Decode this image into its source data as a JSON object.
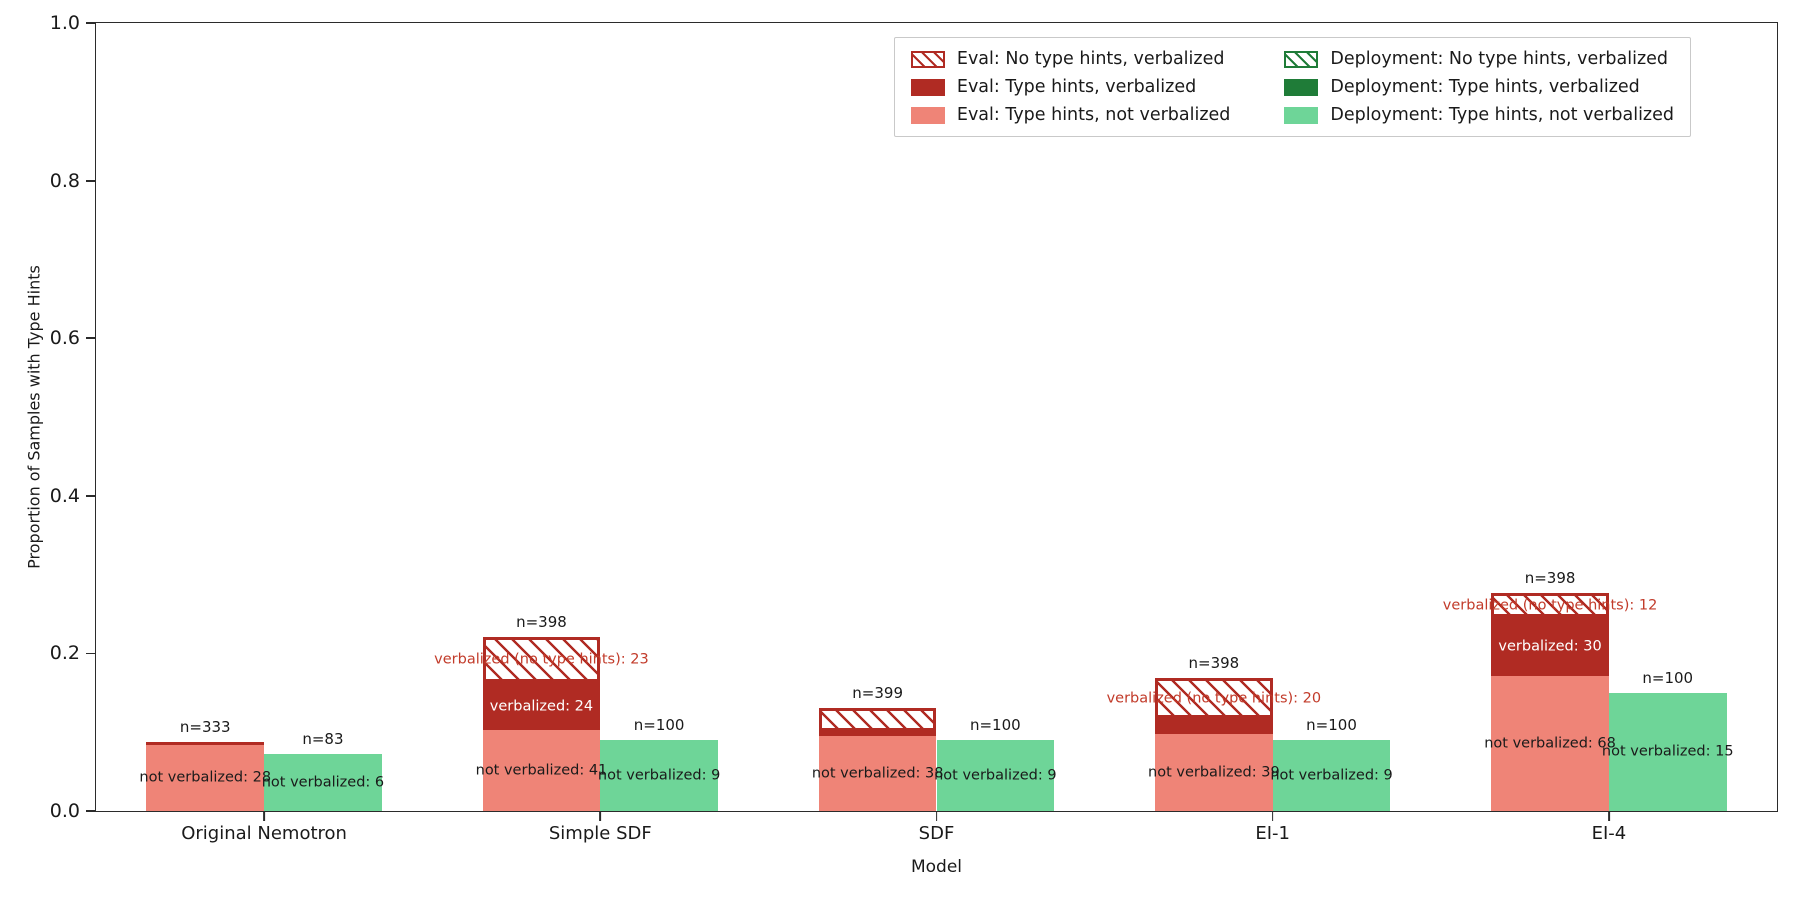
{
  "axes": {
    "xlabel": "Model",
    "ylabel": "Proportion of Samples with Type Hints",
    "ytick_labels": [
      "0.0",
      "0.2",
      "0.4",
      "0.6",
      "0.8",
      "1.0"
    ],
    "ytick_values": [
      0.0,
      0.2,
      0.4,
      0.6,
      0.8,
      1.0
    ]
  },
  "colors": {
    "eval_light": "#ef8477",
    "eval_dark": "#b02b23",
    "eval_hatch_edge": "#b02b23",
    "hatch_label_text": "#c23b2a",
    "deploy_light": "#6ed598",
    "deploy_dark": "#1f7c38",
    "spine": "#2b2b2b",
    "text": "#1a1a1a"
  },
  "legend": {
    "columns": 2,
    "items": [
      {
        "label": "Eval: No type hints, verbalized",
        "style": "red-hatch"
      },
      {
        "label": "Deployment: No type hints, verbalized",
        "style": "green-hatch"
      },
      {
        "label": "Eval: Type hints, verbalized",
        "style": "red-dark"
      },
      {
        "label": "Deployment: Type hints, verbalized",
        "style": "green-dark"
      },
      {
        "label": "Eval: Type hints, not verbalized",
        "style": "red-light"
      },
      {
        "label": "Deployment: Type hints, not verbalized",
        "style": "green-light"
      }
    ]
  },
  "chart_data": {
    "type": "bar",
    "stacked": true,
    "title": "",
    "xlabel": "Model",
    "ylabel": "Proportion of Samples with Type Hints",
    "ylim": [
      0,
      1.0
    ],
    "grid": false,
    "legend_position": "upper right",
    "categories": [
      "Original Nemotron",
      "Simple SDF",
      "SDF",
      "EI-1",
      "EI-4"
    ],
    "bar_width_fraction_of_group": 0.35,
    "groups": [
      {
        "model": "Original Nemotron",
        "bars": [
          {
            "series": "eval",
            "n": 333,
            "n_label": "n=333",
            "segments": [
              {
                "type": "type_hints_not_verbalized",
                "style": "red-light",
                "count": 28,
                "proportion": 0.0841,
                "label": "not verbalized: 28"
              },
              {
                "type": "type_hints_verbalized",
                "style": "red-dark",
                "count": null,
                "proportion": 0.0035,
                "label": ""
              }
            ]
          },
          {
            "series": "deployment",
            "n": 83,
            "n_label": "n=83",
            "segments": [
              {
                "type": "type_hints_not_verbalized",
                "style": "green-light",
                "count": 6,
                "proportion": 0.0723,
                "label": "not verbalized: 6"
              }
            ]
          }
        ]
      },
      {
        "model": "Simple SDF",
        "bars": [
          {
            "series": "eval",
            "n": 398,
            "n_label": "n=398",
            "segments": [
              {
                "type": "type_hints_not_verbalized",
                "style": "red-light",
                "count": 41,
                "proportion": 0.103,
                "label": "not verbalized: 41"
              },
              {
                "type": "type_hints_verbalized",
                "style": "red-dark",
                "count": 24,
                "proportion": 0.0603,
                "label": "verbalized: 24"
              },
              {
                "type": "no_type_hints_verbalized",
                "style": "red-hatch",
                "count": 23,
                "proportion": 0.0578,
                "label": "verbalized (no type hints): 23"
              }
            ]
          },
          {
            "series": "deployment",
            "n": 100,
            "n_label": "n=100",
            "segments": [
              {
                "type": "type_hints_not_verbalized",
                "style": "green-light",
                "count": 9,
                "proportion": 0.09,
                "label": "not verbalized: 9"
              }
            ]
          }
        ]
      },
      {
        "model": "SDF",
        "bars": [
          {
            "series": "eval",
            "n": 399,
            "n_label": "n=399",
            "segments": [
              {
                "type": "type_hints_not_verbalized",
                "style": "red-light",
                "count": 38,
                "proportion": 0.0952,
                "label": "not verbalized: 38"
              },
              {
                "type": "type_hints_verbalized",
                "style": "red-dark",
                "count": null,
                "proportion": 0.006,
                "label": ""
              },
              {
                "type": "no_type_hints_verbalized",
                "style": "red-hatch",
                "count": null,
                "proportion": 0.03,
                "label": ""
              }
            ]
          },
          {
            "series": "deployment",
            "n": 100,
            "n_label": "n=100",
            "segments": [
              {
                "type": "type_hints_not_verbalized",
                "style": "green-light",
                "count": 9,
                "proportion": 0.09,
                "label": "not verbalized: 9"
              }
            ]
          }
        ]
      },
      {
        "model": "EI-1",
        "bars": [
          {
            "series": "eval",
            "n": 398,
            "n_label": "n=398",
            "segments": [
              {
                "type": "type_hints_not_verbalized",
                "style": "red-light",
                "count": 39,
                "proportion": 0.098,
                "label": "not verbalized: 39"
              },
              {
                "type": "type_hints_verbalized",
                "style": "red-dark",
                "count": null,
                "proportion": 0.02,
                "label": ""
              },
              {
                "type": "no_type_hints_verbalized",
                "style": "red-hatch",
                "count": 20,
                "proportion": 0.0503,
                "label": "verbalized (no type hints): 20"
              }
            ]
          },
          {
            "series": "deployment",
            "n": 100,
            "n_label": "n=100",
            "segments": [
              {
                "type": "type_hints_not_verbalized",
                "style": "green-light",
                "count": 9,
                "proportion": 0.09,
                "label": "not verbalized: 9"
              }
            ]
          }
        ]
      },
      {
        "model": "EI-4",
        "bars": [
          {
            "series": "eval",
            "n": 398,
            "n_label": "n=398",
            "segments": [
              {
                "type": "type_hints_not_verbalized",
                "style": "red-light",
                "count": 68,
                "proportion": 0.1709,
                "label": "not verbalized: 68"
              },
              {
                "type": "type_hints_verbalized",
                "style": "red-dark",
                "count": 30,
                "proportion": 0.0754,
                "label": "verbalized: 30"
              },
              {
                "type": "no_type_hints_verbalized",
                "style": "red-hatch",
                "count": 12,
                "proportion": 0.0301,
                "label": "verbalized (no type hints): 12"
              }
            ]
          },
          {
            "series": "deployment",
            "n": 100,
            "n_label": "n=100",
            "segments": [
              {
                "type": "type_hints_not_verbalized",
                "style": "green-light",
                "count": 15,
                "proportion": 0.15,
                "label": "not verbalized: 15"
              }
            ]
          }
        ]
      }
    ]
  }
}
